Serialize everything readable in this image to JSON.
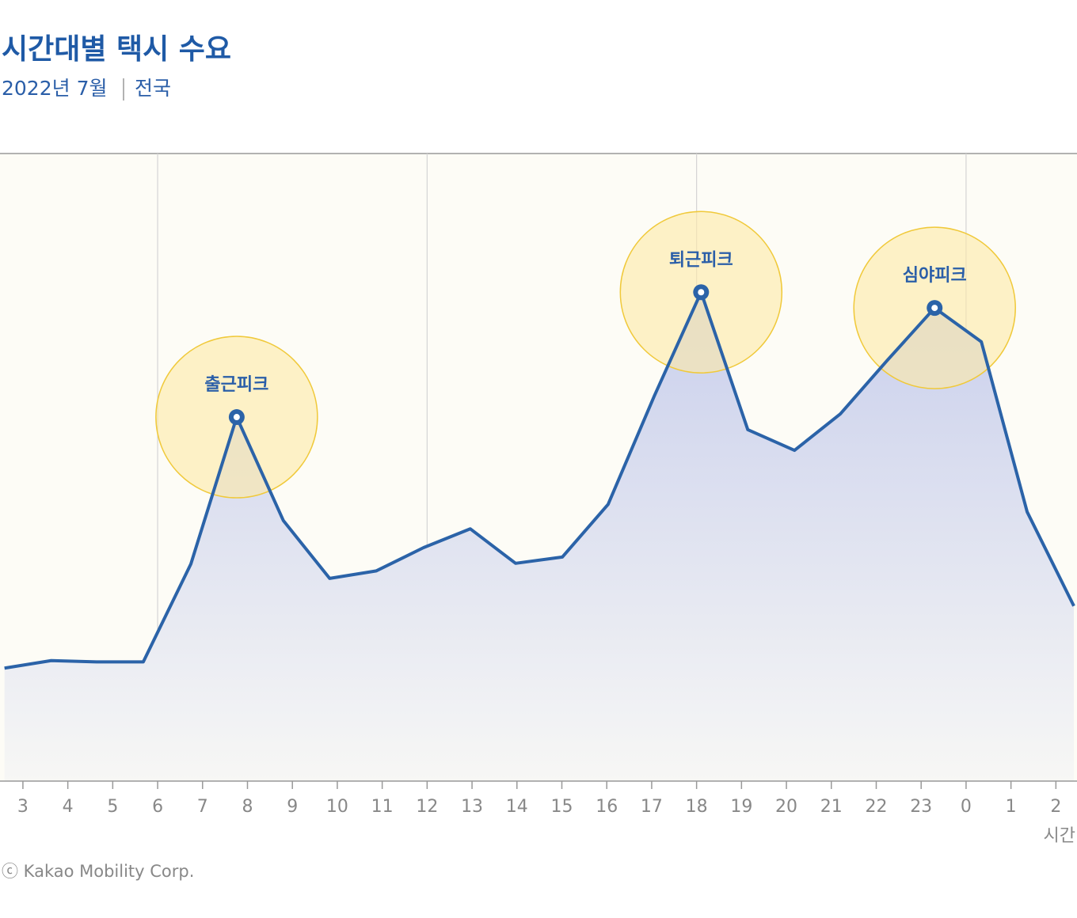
{
  "chart_data": {
    "type": "area",
    "title": "시간대별 택시 수요",
    "subtitle": [
      "2022년 7월",
      "전국"
    ],
    "x_label": "시간",
    "footer": "ⓒ Kakao Mobility Corp.",
    "x": [
      -0.41,
      0.63,
      1.64,
      2.68,
      3.74,
      4.76,
      5.8,
      6.83,
      7.87,
      8.92,
      9.96,
      10.97,
      12.01,
      13.03,
      14.06,
      15.1,
      16.14,
      17.18,
      18.2,
      19.24,
      20.3,
      21.34,
      22.36,
      23.4
    ],
    "values": [
      18.0,
      19.2,
      19.0,
      19.0,
      34.6,
      58.0,
      41.5,
      32.3,
      33.5,
      37.2,
      40.2,
      34.7,
      35.7,
      44.1,
      61.4,
      77.9,
      56.0,
      52.7,
      58.5,
      67.0,
      75.4,
      70.0,
      42.9,
      27.9
    ],
    "color": "#2b63a8",
    "xlim": [
      -0.51,
      23.47
    ],
    "ylim": [
      0,
      100
    ],
    "xticks": [
      {
        "value": 0,
        "label": "3"
      },
      {
        "value": 1,
        "label": "4"
      },
      {
        "value": 2,
        "label": "5"
      },
      {
        "value": 3,
        "label": "6"
      },
      {
        "value": 4,
        "label": "7"
      },
      {
        "value": 5,
        "label": "8"
      },
      {
        "value": 6,
        "label": "9"
      },
      {
        "value": 7,
        "label": "10"
      },
      {
        "value": 8,
        "label": "11"
      },
      {
        "value": 9,
        "label": "12"
      },
      {
        "value": 10,
        "label": "13"
      },
      {
        "value": 11,
        "label": "14"
      },
      {
        "value": 12,
        "label": "15"
      },
      {
        "value": 13,
        "label": "16"
      },
      {
        "value": 14,
        "label": "17"
      },
      {
        "value": 15,
        "label": "18"
      },
      {
        "value": 16,
        "label": "19"
      },
      {
        "value": 17,
        "label": "20"
      },
      {
        "value": 18,
        "label": "21"
      },
      {
        "value": 19,
        "label": "22"
      },
      {
        "value": 20,
        "label": "23"
      },
      {
        "value": 21,
        "label": "0"
      },
      {
        "value": 22,
        "label": "1"
      },
      {
        "value": 23,
        "label": "2"
      }
    ],
    "annotations": [
      {
        "text": "출근피크",
        "index": 5
      },
      {
        "text": "퇴근피크",
        "index": 15
      },
      {
        "text": "심야피크",
        "index": 20
      }
    ]
  }
}
